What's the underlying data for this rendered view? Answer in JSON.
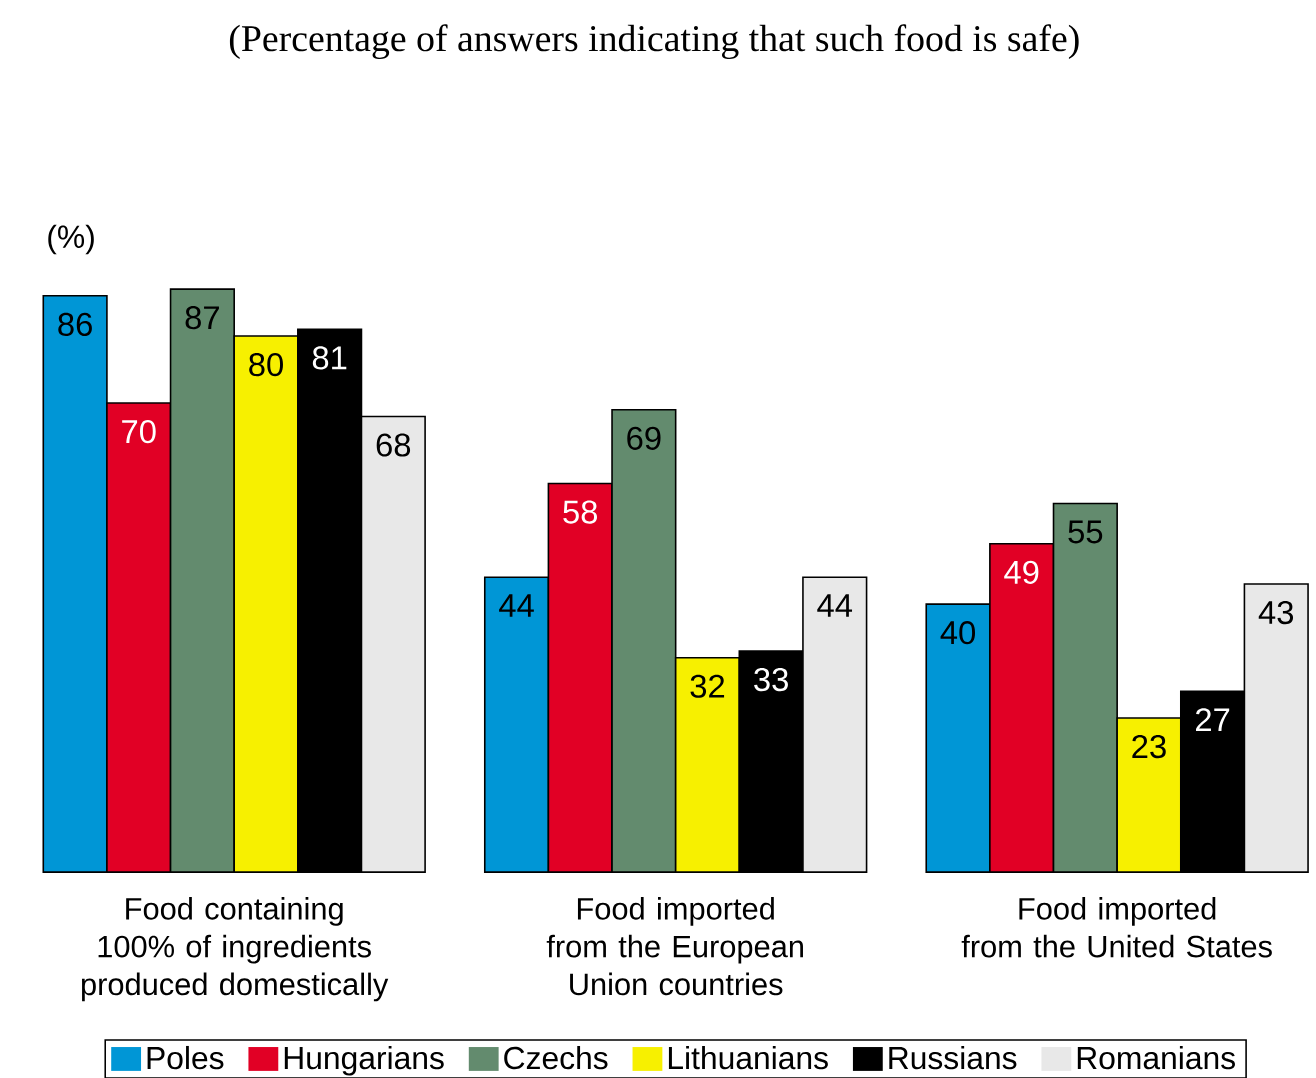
{
  "chart_data": {
    "type": "bar",
    "title": "(Percentage of answers indicating that such food is safe)",
    "ylabel": "(%)",
    "categories": [
      "Food containing\n100% of ingredients\nproduced domestically",
      "Food imported\nfrom the European\nUnion countries",
      "Food imported\nfrom the United States"
    ],
    "series": [
      {
        "name": "Poles",
        "color": "#0096d6",
        "values": [
          86,
          44,
          40
        ]
      },
      {
        "name": "Hungarians",
        "color": "#e10025",
        "values": [
          70,
          58,
          49
        ]
      },
      {
        "name": "Czechs",
        "color": "#638b6e",
        "values": [
          87,
          69,
          55
        ]
      },
      {
        "name": "Lithuanians",
        "color": "#f7f000",
        "values": [
          80,
          32,
          23
        ]
      },
      {
        "name": "Russians",
        "color": "#000000",
        "values": [
          81,
          33,
          27
        ]
      },
      {
        "name": "Romanians",
        "color": "#e8e8e8",
        "values": [
          68,
          44,
          43
        ]
      }
    ],
    "data_labels": true,
    "legend": "bottom"
  }
}
